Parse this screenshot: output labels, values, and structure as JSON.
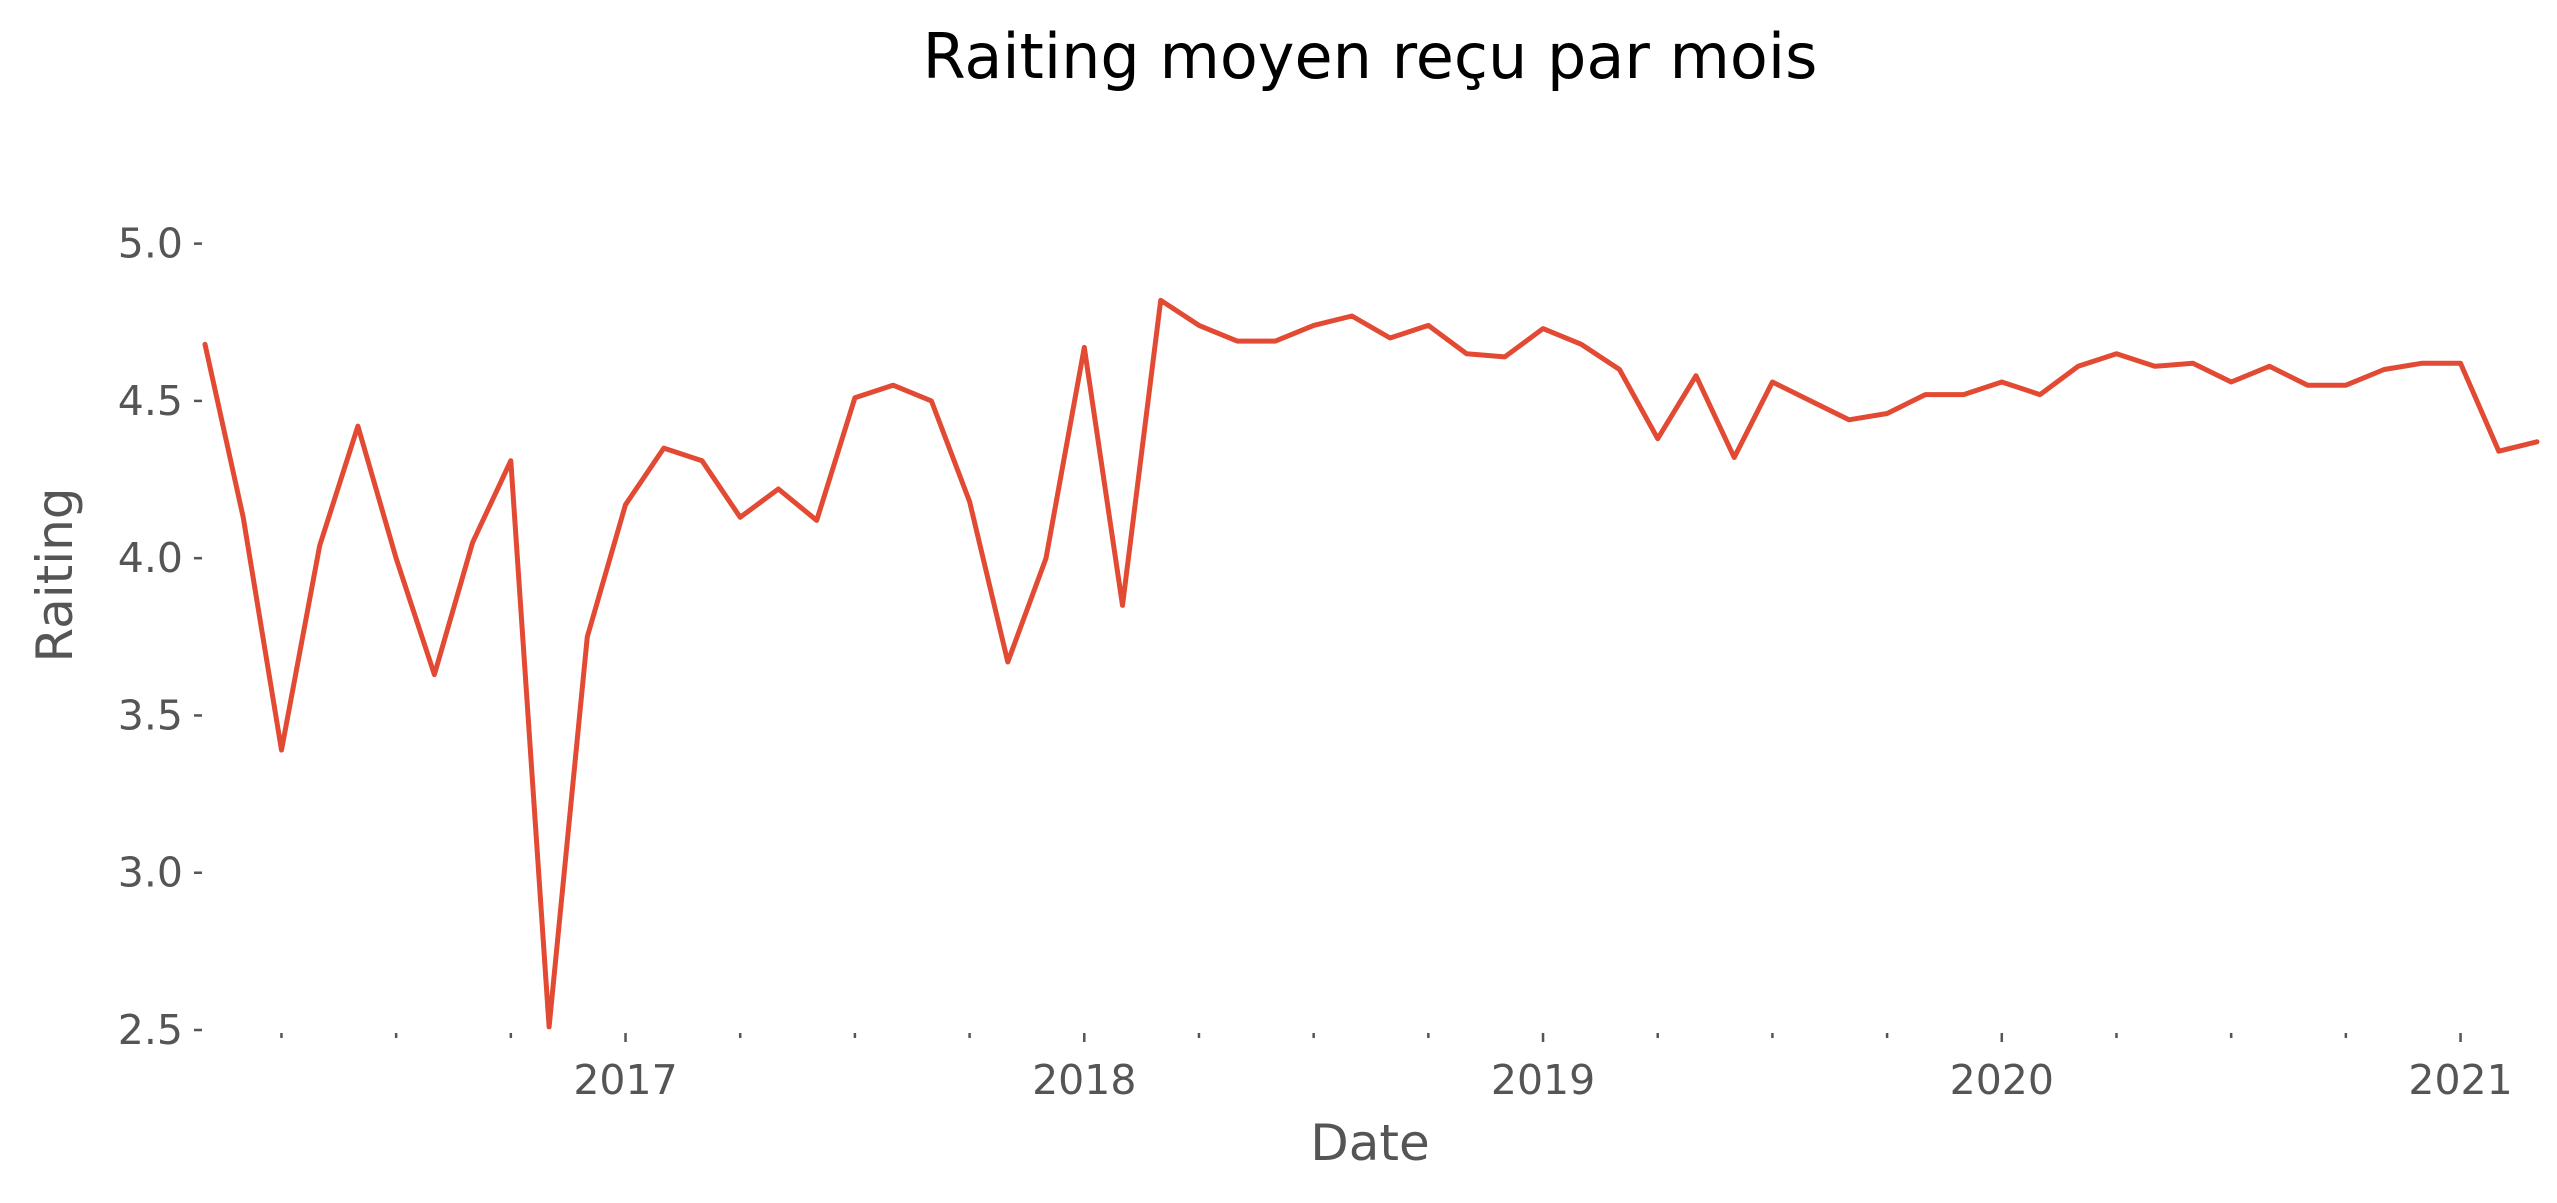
{
  "chart_data": {
    "type": "line",
    "title": "Raiting moyen reçu par mois",
    "xlabel": "Date",
    "ylabel": "Raiting",
    "ylim": [
      2.5,
      5.25
    ],
    "xlim": [
      "2016-02",
      "2021-03"
    ],
    "grid": false,
    "legend": "none",
    "line_color": "#E24A33",
    "yticks": [
      {
        "value": 2.5,
        "label": "2.5"
      },
      {
        "value": 3.0,
        "label": "3.0"
      },
      {
        "value": 3.5,
        "label": "3.5"
      },
      {
        "value": 4.0,
        "label": "4.0"
      },
      {
        "value": 4.5,
        "label": "4.5"
      },
      {
        "value": 5.0,
        "label": "5.0"
      }
    ],
    "xticks_major": [
      {
        "value": "2017-01",
        "label": "2017"
      },
      {
        "value": "2018-01",
        "label": "2018"
      },
      {
        "value": "2019-01",
        "label": "2019"
      },
      {
        "value": "2020-01",
        "label": "2020"
      },
      {
        "value": "2021-01",
        "label": "2021"
      }
    ],
    "xticks_minor": [
      "2016-04",
      "2016-07",
      "2016-10",
      "2017-04",
      "2017-07",
      "2017-10",
      "2018-04",
      "2018-07",
      "2018-10",
      "2019-04",
      "2019-07",
      "2019-10",
      "2020-04",
      "2020-07",
      "2020-10"
    ],
    "x": [
      "2016-02",
      "2016-03",
      "2016-04",
      "2016-05",
      "2016-06",
      "2016-07",
      "2016-08",
      "2016-09",
      "2016-10",
      "2016-11",
      "2016-12",
      "2017-01",
      "2017-02",
      "2017-03",
      "2017-04",
      "2017-05",
      "2017-06",
      "2017-07",
      "2017-08",
      "2017-09",
      "2017-10",
      "2017-11",
      "2017-12",
      "2018-01",
      "2018-02",
      "2018-03",
      "2018-04",
      "2018-05",
      "2018-06",
      "2018-07",
      "2018-08",
      "2018-09",
      "2018-10",
      "2018-11",
      "2018-12",
      "2019-01",
      "2019-02",
      "2019-03",
      "2019-04",
      "2019-05",
      "2019-06",
      "2019-07",
      "2019-08",
      "2019-09",
      "2019-10",
      "2019-11",
      "2019-12",
      "2020-01",
      "2020-02",
      "2020-03",
      "2020-04",
      "2020-05",
      "2020-06",
      "2020-07",
      "2020-08",
      "2020-09",
      "2020-10",
      "2020-11",
      "2020-12",
      "2021-01",
      "2021-02",
      "2021-03"
    ],
    "series": [
      {
        "values": [
          4.68,
          4.13,
          3.39,
          4.04,
          4.42,
          4.0,
          3.63,
          4.05,
          4.31,
          2.51,
          3.75,
          4.17,
          4.35,
          4.31,
          4.13,
          4.22,
          4.12,
          4.51,
          4.55,
          4.5,
          4.18,
          3.67,
          4.0,
          4.67,
          3.85,
          4.82,
          4.74,
          4.69,
          4.69,
          4.74,
          4.77,
          4.7,
          4.74,
          4.65,
          4.64,
          4.73,
          4.68,
          4.6,
          4.38,
          4.58,
          4.32,
          4.56,
          4.5,
          4.44,
          4.46,
          4.52,
          4.52,
          4.56,
          4.52,
          4.61,
          4.65,
          4.61,
          4.62,
          4.56,
          4.61,
          4.55,
          4.55,
          4.6,
          4.62,
          4.62,
          4.34,
          4.37
        ]
      }
    ]
  }
}
